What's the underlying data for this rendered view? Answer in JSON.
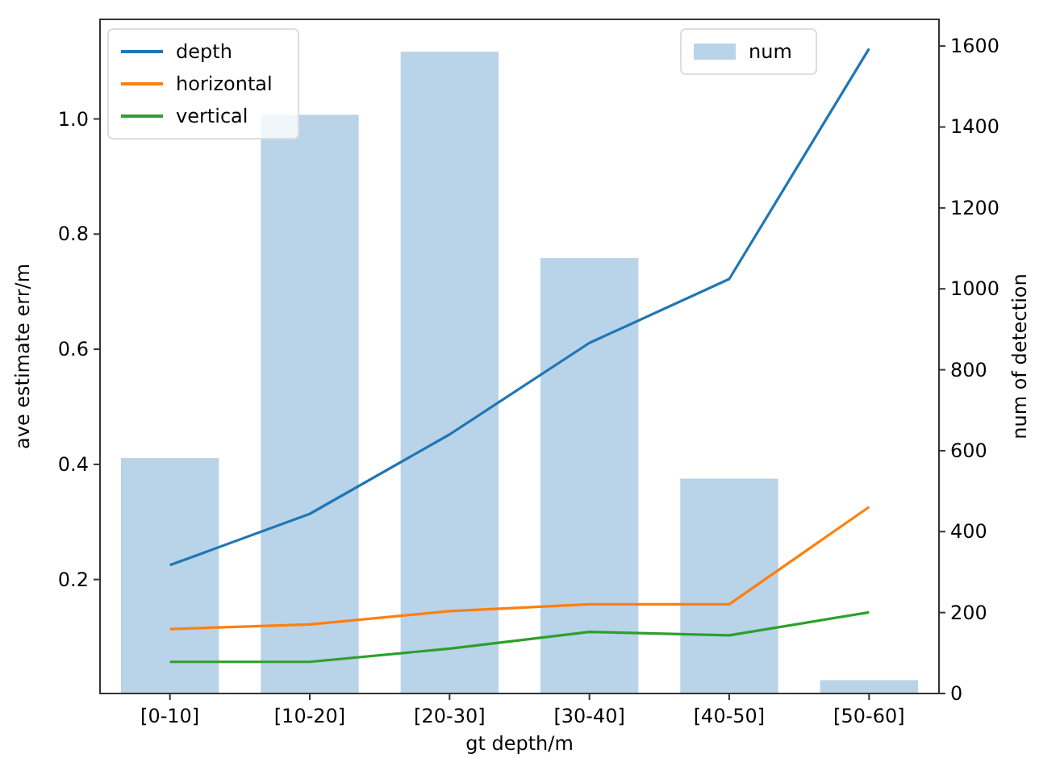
{
  "chart_data": {
    "type": "line",
    "xlabel": "gt depth/m",
    "ylabel": "ave estimate err/m",
    "y2label": "num of detection",
    "categories": [
      "[0-10]",
      "[10-20]",
      "[20-30]",
      "[30-40]",
      "[40-50]",
      "[50-60]"
    ],
    "series": [
      {
        "name": "num",
        "type": "bar",
        "axis": "y2",
        "color": "#b9d3e8",
        "values": [
          582,
          1430,
          1586,
          1076,
          531,
          33
        ]
      },
      {
        "name": "depth",
        "color": "#1f77b4",
        "values": [
          0.225,
          0.314,
          0.452,
          0.611,
          0.722,
          1.122
        ]
      },
      {
        "name": "horizontal",
        "color": "#ff7f0e",
        "values": [
          0.114,
          0.122,
          0.145,
          0.157,
          0.157,
          0.326
        ]
      },
      {
        "name": "vertical",
        "color": "#2ca02c",
        "values": [
          0.057,
          0.057,
          0.08,
          0.109,
          0.103,
          0.143
        ]
      }
    ],
    "ylim": [
      0.002,
      1.173
    ],
    "yticks": [
      {
        "value": 0.2,
        "label": "0.2"
      },
      {
        "value": 0.4,
        "label": "0.4"
      },
      {
        "value": 0.6,
        "label": "0.6"
      },
      {
        "value": 0.8,
        "label": "0.8"
      },
      {
        "value": 1.0,
        "label": "1.0"
      }
    ],
    "y2lim": [
      0,
      1666
    ],
    "y2ticks": [
      0,
      200,
      400,
      600,
      800,
      1000,
      1200,
      1400,
      1600
    ],
    "legend": "top",
    "grid": false
  }
}
